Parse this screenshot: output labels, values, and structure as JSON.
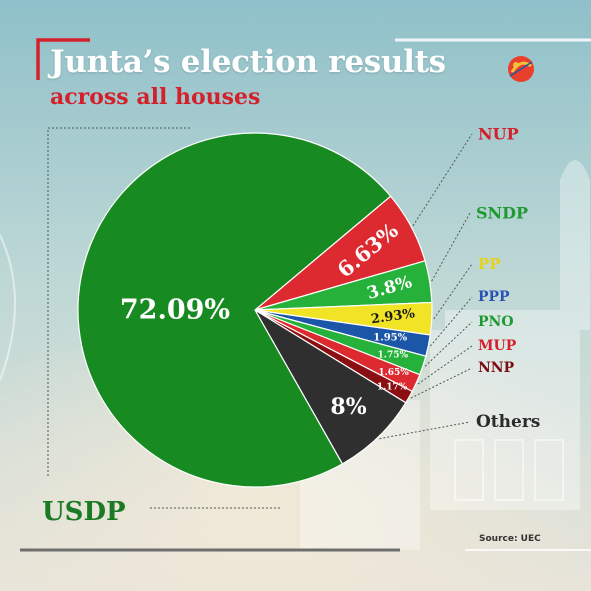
{
  "title": "Junta’s election results",
  "subtitle": "across all houses",
  "source": "Source: UEC",
  "chart_data": {
    "type": "pie",
    "title": "Junta’s election results",
    "subtitle": "across all houses",
    "slices": [
      {
        "label": "USDP",
        "value": 72.09,
        "value_label": "72.09%",
        "color": "#188a22"
      },
      {
        "label": "NUP",
        "value": 6.63,
        "value_label": "6.63%",
        "color": "#dc2a30"
      },
      {
        "label": "SNDP",
        "value": 3.8,
        "value_label": "3.8%",
        "color": "#26b23a"
      },
      {
        "label": "PP",
        "value": 2.93,
        "value_label": "2.93%",
        "color": "#f1e325"
      },
      {
        "label": "PPP",
        "value": 1.95,
        "value_label": "1.95%",
        "color": "#1c56a8"
      },
      {
        "label": "PNO",
        "value": 1.75,
        "value_label": "1.75%",
        "color": "#26b23a"
      },
      {
        "label": "MUP",
        "value": 1.65,
        "value_label": "1.65%",
        "color": "#dc2a30"
      },
      {
        "label": "NNP",
        "value": 1.17,
        "value_label": "1.17%",
        "color": "#8b0f12"
      },
      {
        "label": "Others",
        "value": 8,
        "value_label": "8%",
        "color": "#2f2f2f"
      }
    ]
  },
  "colors": {
    "usdp_label": "#1b7a24",
    "nup_label": "#d4202a",
    "sndp_label": "#1f9a31",
    "pp_label": "#e6d21a",
    "ppp_label": "#2a52b0",
    "pno_label": "#1f9a31",
    "mup_label": "#d4202a",
    "nnp_label": "#7a0d10",
    "others_label": "#2b2b2b"
  }
}
